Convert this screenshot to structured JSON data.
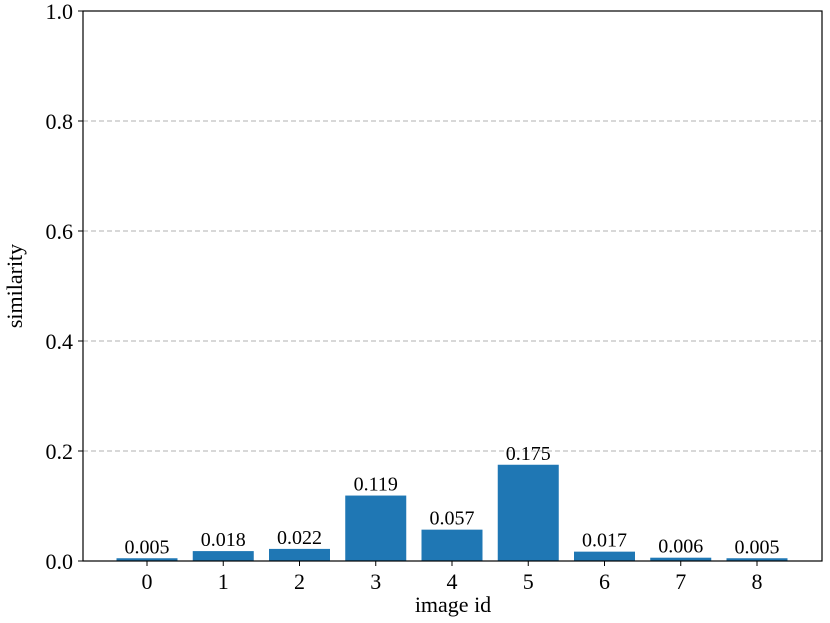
{
  "chart_data": {
    "type": "bar",
    "x_label": "image id",
    "y_label": "similarity",
    "categories": [
      "0",
      "1",
      "2",
      "3",
      "4",
      "5",
      "6",
      "7",
      "8"
    ],
    "values": [
      0.005,
      0.018,
      0.022,
      0.119,
      0.057,
      0.175,
      0.017,
      0.006,
      0.005
    ],
    "color": "#1f77b4",
    "ylim": [
      0,
      1
    ],
    "yticks": [
      {
        "value": 0,
        "label": "0.0"
      },
      0.2,
      0.4,
      0.6,
      0.8,
      {
        "value": 1,
        "label": "1.0"
      }
    ],
    "grid": true
  }
}
